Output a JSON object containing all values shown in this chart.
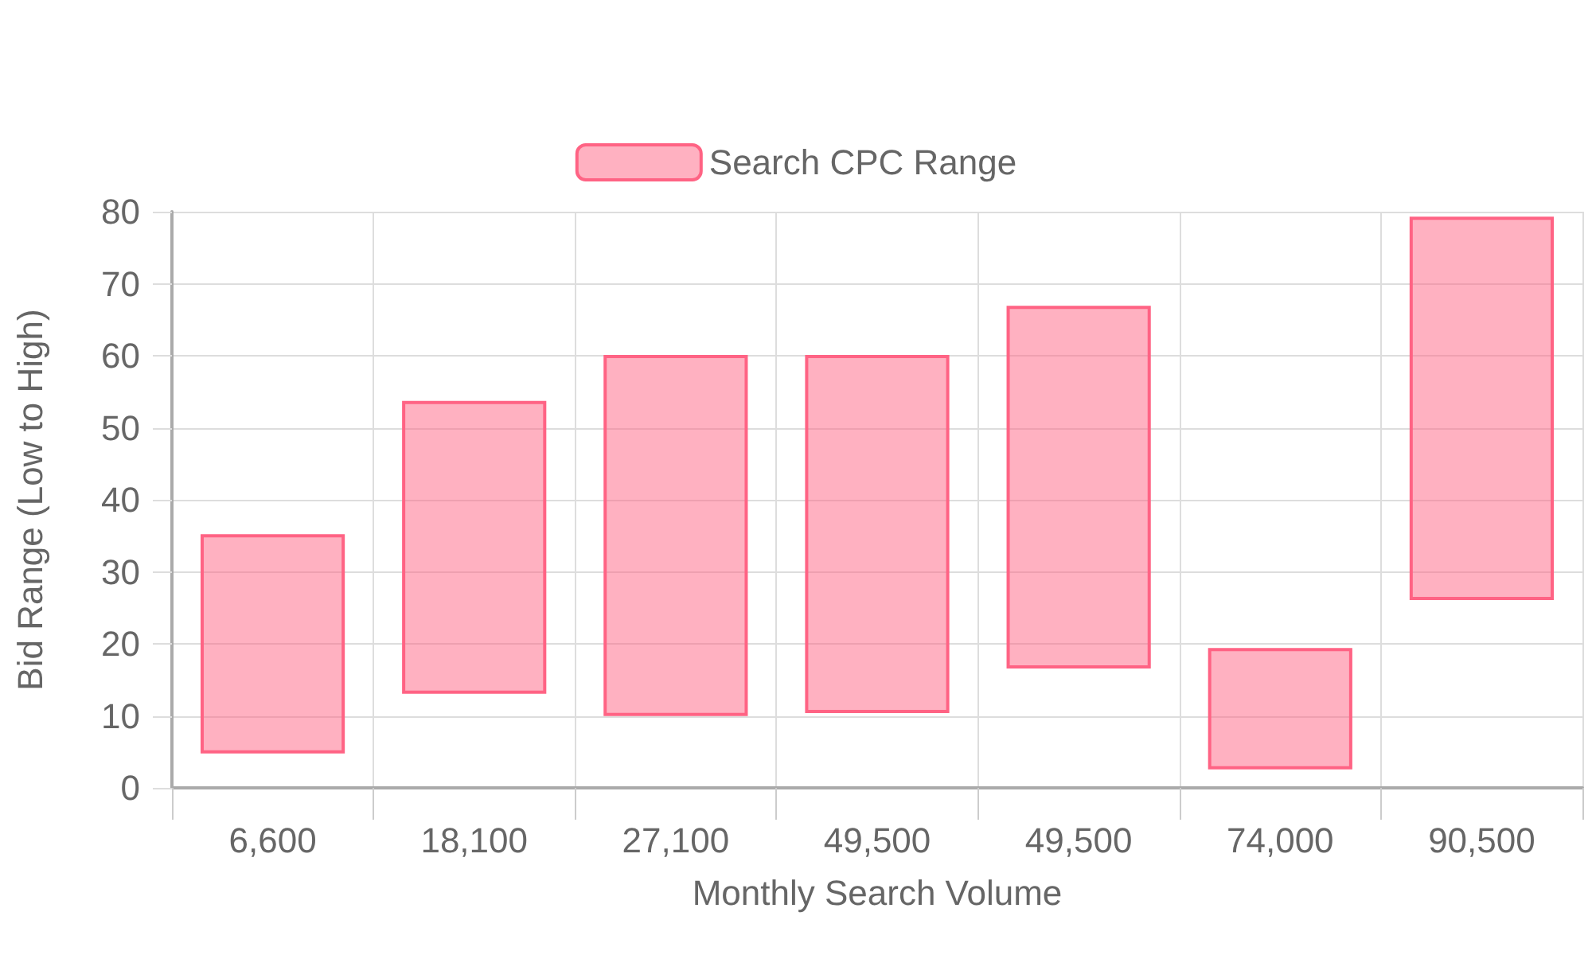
{
  "chart_data": {
    "type": "bar",
    "categories": [
      "6,600",
      "18,100",
      "27,100",
      "49,500",
      "49,500",
      "74,000",
      "90,500"
    ],
    "series": [
      {
        "name": "Search CPC Range",
        "color": "#ff6384",
        "values": [
          30,
          40.2,
          49.7,
          49.3,
          49.9,
          16.4,
          52.8
        ],
        "base": [
          5,
          13.3,
          10.2,
          10.6,
          16.8,
          2.8,
          26.3
        ]
      }
    ],
    "xlabel": "Monthly Search Volume",
    "ylabel": "Bid Range (Low to High)",
    "ylim": [
      0,
      80
    ],
    "yticks": [
      0,
      10,
      20,
      30,
      40,
      50,
      60,
      70,
      80
    ],
    "grid": true,
    "legend": "top"
  }
}
